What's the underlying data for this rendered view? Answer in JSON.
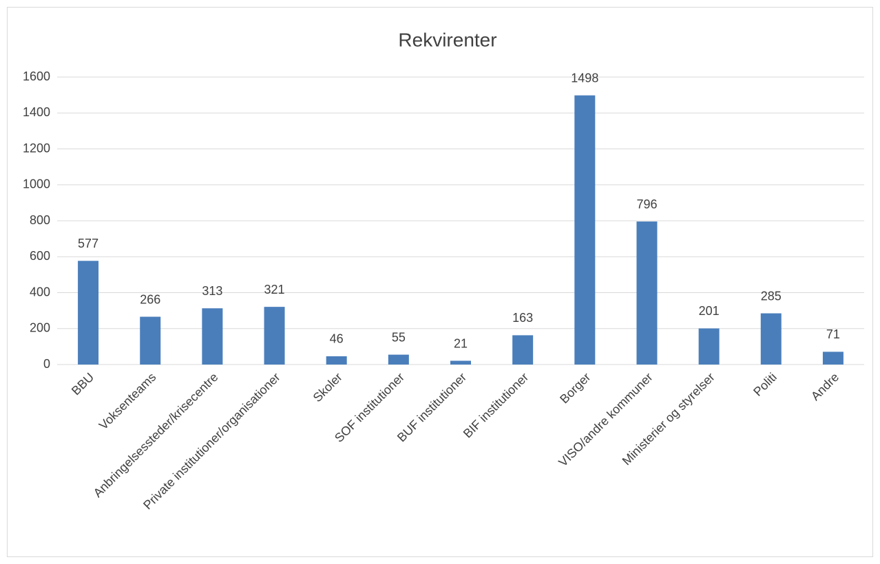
{
  "chart_data": {
    "type": "bar",
    "title": "Rekvirenter",
    "categories": [
      "BBU",
      "Voksenteams",
      "Anbringelsessteder/krisecentre",
      "Private institutioner/organisationer",
      "Skoler",
      "SOF institutioner",
      "BUF institutioner",
      "BIF institutioner",
      "Borger",
      "VISO/andre kommuner",
      "Ministerier og styrelser",
      "Politi",
      "Andre"
    ],
    "values": [
      577,
      266,
      313,
      321,
      46,
      55,
      21,
      163,
      1498,
      796,
      201,
      285,
      71
    ],
    "color": "#4a7ebb",
    "ylim": [
      0,
      1600
    ],
    "yticks": [
      0,
      200,
      400,
      600,
      800,
      1000,
      1200,
      1400,
      1600
    ],
    "grid": true
  }
}
